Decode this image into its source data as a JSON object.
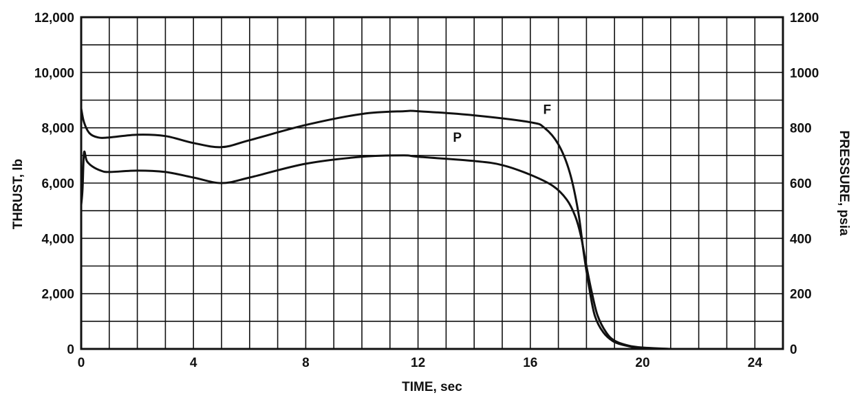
{
  "chart_data": {
    "type": "line",
    "xlabel": "TIME, sec",
    "ylabel": "THRUST, lb",
    "y2label": "PRESSURE, psia",
    "xlim": [
      0,
      25
    ],
    "ylim": [
      0,
      12000
    ],
    "y2lim": [
      0,
      1200
    ],
    "x_ticks": [
      0,
      4,
      8,
      12,
      16,
      20,
      24
    ],
    "x_tick_labels": [
      "0",
      "4",
      "8",
      "12",
      "16",
      "20",
      "24"
    ],
    "y_ticks": [
      0,
      2000,
      4000,
      6000,
      8000,
      10000,
      12000
    ],
    "y_tick_labels": [
      "0",
      "2,000",
      "4,000",
      "6,000",
      "8,000",
      "10,000",
      "12,000"
    ],
    "y2_ticks": [
      0,
      200,
      400,
      600,
      800,
      1000,
      1200
    ],
    "y2_tick_labels": [
      "0",
      "200",
      "400",
      "600",
      "800",
      "1000",
      "1200"
    ],
    "grid": true,
    "grid_x_step": 1,
    "grid_y_step": 1000,
    "series": [
      {
        "name": "F",
        "axis": "left",
        "x": [
          0,
          0.1,
          0.3,
          0.6,
          1.0,
          2.0,
          3.0,
          4.0,
          5.0,
          6.0,
          8.0,
          10.0,
          11.5,
          12.0,
          14.0,
          16.0,
          16.5,
          17.0,
          17.4,
          17.7,
          17.9,
          18.1,
          18.3,
          18.6,
          19.0,
          19.5,
          20.0,
          21.0
        ],
        "y": [
          8700,
          8200,
          7800,
          7650,
          7650,
          7750,
          7700,
          7450,
          7300,
          7550,
          8100,
          8500,
          8600,
          8600,
          8450,
          8200,
          8000,
          7400,
          6400,
          5000,
          3500,
          2200,
          1200,
          600,
          250,
          100,
          30,
          0
        ]
      },
      {
        "name": "P",
        "axis": "right",
        "x": [
          0,
          0.05,
          0.1,
          0.2,
          0.4,
          0.7,
          1.0,
          2.0,
          3.0,
          4.0,
          5.0,
          6.0,
          8.0,
          10.0,
          11.5,
          12.0,
          14.0,
          15.0,
          16.0,
          16.8,
          17.3,
          17.6,
          17.8,
          18.0,
          18.2,
          18.4,
          18.7,
          19.0,
          19.5,
          20.0,
          21.0
        ],
        "y": [
          520,
          580,
          710,
          680,
          660,
          645,
          640,
          645,
          640,
          620,
          600,
          620,
          670,
          695,
          700,
          695,
          680,
          665,
          630,
          590,
          540,
          480,
          410,
          300,
          200,
          120,
          60,
          30,
          12,
          5,
          0
        ]
      }
    ],
    "annotations": [
      {
        "text": "F",
        "x": 16.6,
        "y": 8500,
        "axis": "left"
      },
      {
        "text": "P",
        "x": 13.4,
        "y": 7500,
        "axis": "left"
      }
    ]
  }
}
